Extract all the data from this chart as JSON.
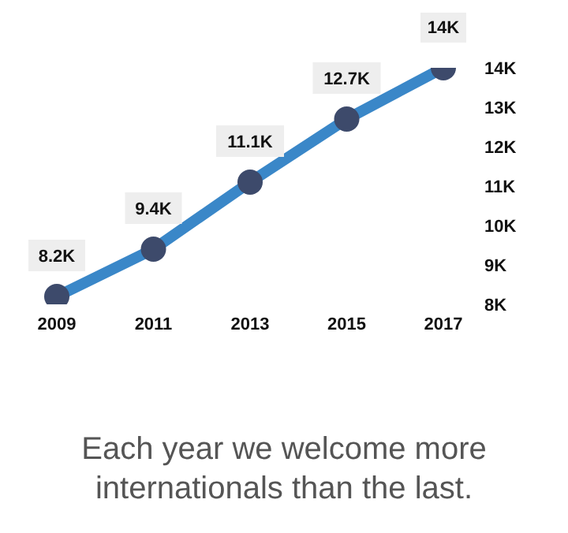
{
  "chart_data": {
    "type": "line",
    "categories": [
      "2009",
      "2011",
      "2013",
      "2015",
      "2017"
    ],
    "series": [
      {
        "color": "#3a87c8",
        "values": [
          8.2,
          9.4,
          11.1,
          12.7,
          14
        ],
        "value_labels": [
          "8.2K",
          "9.4K",
          "11.1K",
          "12.7K",
          "14K"
        ]
      }
    ],
    "ylim": [
      8,
      14
    ],
    "yticks": [
      {
        "value": 8,
        "label": "8K"
      },
      {
        "value": 9,
        "label": "9K"
      },
      {
        "value": 10,
        "label": "10K"
      },
      {
        "value": 11,
        "label": "11K"
      },
      {
        "value": 12,
        "label": "12K"
      },
      {
        "value": 13,
        "label": "13K"
      },
      {
        "value": 14,
        "label": "14K"
      }
    ],
    "marker": "circle",
    "line_style": "solid",
    "grid": false,
    "legend": false,
    "annotations": [
      "Each year we welcome more internationals than the last."
    ]
  }
}
